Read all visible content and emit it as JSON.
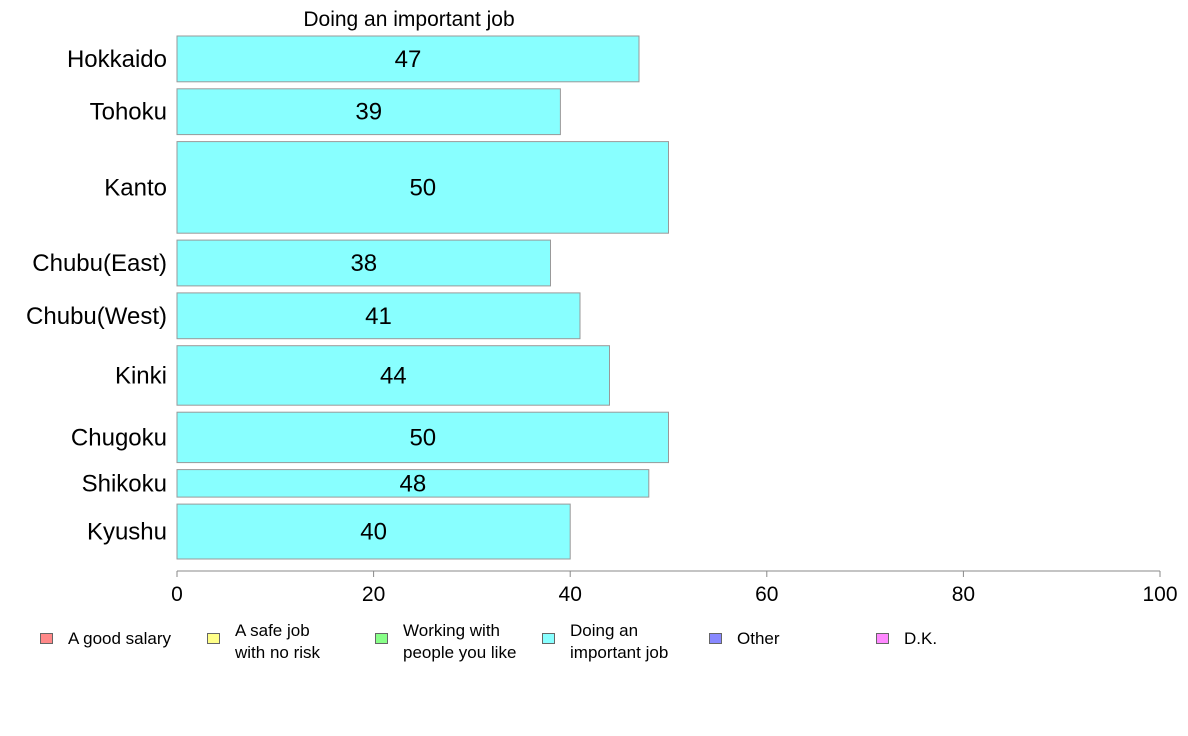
{
  "chart_data": {
    "type": "bar",
    "orientation": "horizontal",
    "title": "Doing an important job",
    "categories": [
      "Hokkaido",
      "Tohoku",
      "Kanto",
      "Chubu(East)",
      "Chubu(West)",
      "Kinki",
      "Chugoku",
      "Shikoku",
      "Kyushu"
    ],
    "values": [
      47,
      39,
      50,
      38,
      41,
      44,
      50,
      48,
      40
    ],
    "data_labels": [
      "47",
      "39",
      "50",
      "38",
      "41",
      "44",
      "50",
      "48",
      "40"
    ],
    "relative_bar_weight": [
      2,
      2,
      4,
      2,
      2,
      2.6,
      2.2,
      1.2,
      2.4
    ],
    "bar_color": "#88ffff",
    "bar_border_color": "#999999",
    "xlim": [
      0,
      100
    ],
    "xticks": [
      0,
      20,
      40,
      60,
      80,
      100
    ],
    "xlabel": "",
    "ylabel": "",
    "grid": false,
    "legend_position": "bottom"
  },
  "legend": {
    "items": [
      {
        "label": "A good salary",
        "color": "#ff8888"
      },
      {
        "label": "A safe job\nwith no risk",
        "color": "#ffff88"
      },
      {
        "label": "Working with\npeople you like",
        "color": "#88ff88"
      },
      {
        "label": "Doing an\nimportant job",
        "color": "#88ffff"
      },
      {
        "label": "Other",
        "color": "#8888ff"
      },
      {
        "label": "D.K.",
        "color": "#ff88ff"
      }
    ]
  }
}
